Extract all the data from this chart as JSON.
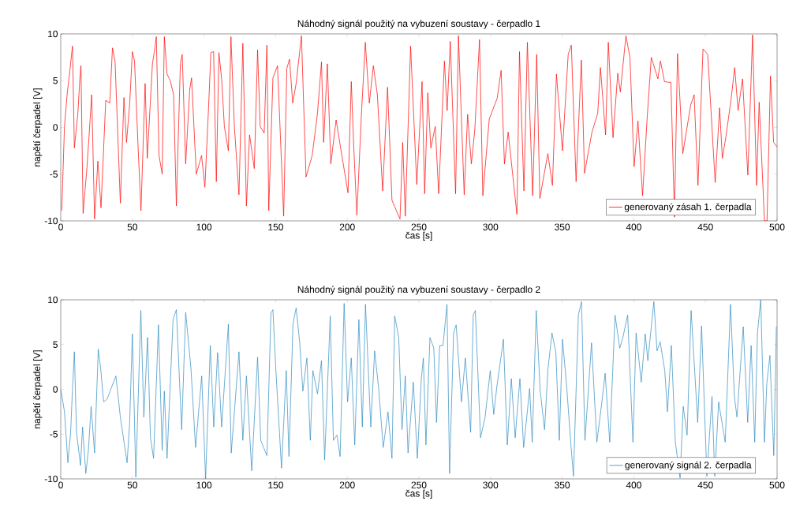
{
  "chart_data": [
    {
      "type": "line",
      "title": "Náhodný signál použitý na vybuzení soustavy - čerpadlo 1",
      "xlabel": "čas [s]",
      "ylabel": "napětí čerpadel [V]",
      "xlim": [
        0,
        500
      ],
      "ylim": [
        -10,
        10
      ],
      "xticks": [
        0,
        50,
        100,
        150,
        200,
        250,
        300,
        350,
        400,
        450,
        500
      ],
      "yticks": [
        -10,
        -5,
        0,
        5,
        10
      ],
      "legend": "bottom right",
      "line_style": "solid",
      "x": [
        0.7,
        2.6,
        4.5,
        6.3,
        8.2,
        9.5,
        11.9,
        13.4,
        14.1,
        15.6,
        18.4,
        21.6,
        23.6,
        25.9,
        28.1,
        31.4,
        34.2,
        36.1,
        37.9,
        41.6,
        44.1,
        45.9,
        48.1,
        50.0,
        51.5,
        54.1,
        56.0,
        58.9,
        60.4,
        64.0,
        65.2,
        66.7,
        68.6,
        70.8,
        72.3,
        74.2,
        76.4,
        78.8,
        80.7,
        83.5,
        84.8,
        87.2,
        90.0,
        91.3,
        94.6,
        98.3,
        100.6,
        103.0,
        104.8,
        106.7,
        108.6,
        110.4,
        112.3,
        114.2,
        117.0,
        118.8,
        121.2,
        124.4,
        127.1,
        129.6,
        131.8,
        135.1,
        137.4,
        139.2,
        142.0,
        143.9,
        145.2,
        148.1,
        151.3,
        155.6,
        157.8,
        159.7,
        161.9,
        164.3,
        168.0,
        171.2,
        175.5,
        179.2,
        182.0,
        183.5,
        186.1,
        188.5,
        192.2,
        195.9,
        200.5,
        202.8,
        204.3,
        206.7,
        209.8,
        212.6,
        215.4,
        218.2,
        221.0,
        224.7,
        228.1,
        231.2,
        236.8,
        238.7,
        240.5,
        244.2,
        248.5,
        252.2,
        254.0,
        256.2,
        258.3,
        261.4,
        263.8,
        267.8,
        269.7,
        271.9,
        275.6,
        277.6,
        281.6,
        284.0,
        286.6,
        289.0,
        292.3,
        294.6,
        299.1,
        304.6,
        307.4,
        309.7,
        312.3,
        318.4,
        320.2,
        323.3,
        325.7,
        329.4,
        332.2,
        334.4,
        340.0,
        343.2,
        346.0,
        350.2,
        354.2,
        356.4,
        359.7,
        363.4,
        365.6,
        370.8,
        374.8,
        376.7,
        380.3,
        382.2,
        385.5,
        388.8,
        390.6,
        394.5,
        397.3,
        400.2,
        402.9,
        406.1,
        409.4,
        412.2,
        416.8,
        418.6,
        421.4,
        425.9,
        428.4,
        430.5,
        434.2,
        435.7,
        439.7,
        442.1,
        444.8,
        448.3,
        451.6,
        456.8,
        459.9,
        461.8,
        464.2,
        467.8,
        470.4,
        472.8,
        475.9,
        479.6,
        482.9,
        485.7,
        487.5,
        491.2,
        493.0,
        495.4,
        497.6,
        500
      ],
      "series": [
        {
          "name": "generovaný zásah 1. čerpadla",
          "color": "#ff0000",
          "values": [
            -8.9,
            0.1,
            3.6,
            6.0,
            8.7,
            -2.2,
            1.4,
            5.4,
            6.6,
            -9.2,
            -4.1,
            3.5,
            -9.8,
            -3.6,
            -8.6,
            2.9,
            2.6,
            8.5,
            7.1,
            -8.1,
            3.2,
            -1.6,
            2.5,
            8.1,
            7.1,
            -2.5,
            -8.9,
            4.7,
            -3.3,
            6.8,
            8.0,
            9.7,
            -3.0,
            -5.0,
            9.7,
            5.7,
            5.0,
            3.5,
            -8.4,
            6.8,
            7.8,
            -3.9,
            4.0,
            5.3,
            -5.0,
            -3.0,
            -6.4,
            1.5,
            8.0,
            8.1,
            -5.8,
            8.0,
            5.2,
            0.1,
            -2.5,
            9.7,
            0.1,
            -7.2,
            9.0,
            -8.4,
            -0.8,
            -4.4,
            8.3,
            0.1,
            -0.6,
            8.8,
            -8.9,
            5.3,
            6.6,
            -9.5,
            6.3,
            7.3,
            2.6,
            4.7,
            9.8,
            -5.3,
            -3.0,
            1.5,
            7.0,
            -1.6,
            6.8,
            -3.9,
            0.8,
            -2.7,
            -7.0,
            4.9,
            -1.3,
            -9.4,
            1.2,
            9.1,
            2.6,
            6.6,
            3.5,
            -6.8,
            4.3,
            -7.8,
            -9.8,
            -1.6,
            -9.5,
            8.7,
            -6.1,
            4.9,
            -7.1,
            3.7,
            -2.2,
            0.1,
            -7.1,
            7.1,
            1.8,
            9.2,
            -7.1,
            9.8,
            -7.2,
            1.4,
            -3.9,
            -0.3,
            9.4,
            -7.3,
            0.9,
            3.1,
            6.1,
            -3.9,
            -0.5,
            -9.3,
            8.1,
            -6.8,
            9.1,
            -7.3,
            7.8,
            -7.6,
            -2.8,
            -6.2,
            5.7,
            -2.5,
            7.8,
            8.8,
            -5.8,
            7.2,
            -4.9,
            -0.5,
            1.5,
            6.4,
            -0.8,
            9.1,
            -1.1,
            5.8,
            3.8,
            9.8,
            7.5,
            -4.2,
            0.7,
            -7.3,
            1.2,
            7.5,
            5.2,
            7.1,
            4.9,
            4.8,
            -9.6,
            7.9,
            -2.8,
            null,
            2.4,
            3.5,
            -6.2,
            8.4,
            7.8,
            -5.9,
            2.1,
            -3.3,
            -1.1,
            2.9,
            6.4,
            1.8,
            5.2,
            -5.1,
            9.9,
            -6.2,
            2.7,
            -10,
            -10,
            5.5,
            -1.6,
            -2.1
          ]
        }
      ]
    },
    {
      "type": "line",
      "title": "Náhodný signál použitý na vybuzení soustavy - čerpadlo 2",
      "xlabel": "čas [s]",
      "ylabel": "napětí čerpadel [V]",
      "xlim": [
        0,
        500
      ],
      "ylim": [
        -10,
        10
      ],
      "xticks": [
        0,
        50,
        100,
        150,
        200,
        250,
        300,
        350,
        400,
        450,
        500
      ],
      "yticks": [
        -10,
        -5,
        0,
        5,
        10
      ],
      "legend": "bottom right",
      "line_style": "solid",
      "x": [
        0.2,
        2.6,
        5.0,
        6.9,
        8.2,
        9.5,
        11.0,
        13.8,
        15.2,
        17.5,
        19.3,
        21.2,
        23.6,
        26.2,
        28.0,
        29.9,
        32.3,
        38.5,
        41.6,
        46.3,
        48.1,
        50.0,
        52.4,
        55.9,
        58.0,
        60.6,
        62.6,
        64.8,
        68.2,
        70.8,
        72.3,
        74.2,
        78.4,
        80.7,
        84.4,
        87.2,
        90.9,
        94.1,
        98.4,
        101.1,
        104.4,
        106.8,
        109.5,
        112.3,
        117.0,
        119.0,
        124.4,
        127.1,
        129.6,
        133.3,
        137.4,
        139.6,
        143.9,
        146.7,
        148.1,
        150.0,
        154.1,
        157.4,
        159.3,
        162.1,
        164.3,
        166.8,
        169.0,
        171.8,
        174.2,
        176.0,
        179.2,
        182.0,
        184.2,
        188.1,
        190.3,
        192.8,
        195.0,
        197.8,
        200.2,
        202.8,
        205.2,
        208.1,
        210.5,
        212.7,
        216.4,
        219.1,
        221.9,
        225.1,
        228.4,
        231.2,
        233.1,
        235.9,
        238.2,
        240.5,
        242.4,
        246.1,
        248.9,
        251.7,
        253.1,
        254.9,
        257.7,
        260.4,
        262.3,
        264.5,
        266.8,
        269.6,
        271.4,
        274.2,
        276.0,
        279.7,
        282.4,
        286.1,
        287.9,
        289.4,
        293.0,
        296.2,
        299.8,
        302.2,
        304.4,
        309.0,
        311.7,
        314.5,
        317.2,
        320.5,
        323.1,
        327.3,
        329.1,
        331.9,
        334.6,
        337.7,
        340.1,
        342.9,
        345.6,
        348.0,
        350.2,
        353.0,
        356.1,
        357.9,
        361.3,
        363.5,
        365.9,
        370.5,
        374.2,
        377.5,
        380.0,
        383.2,
        386.9,
        390.2,
        392.4,
        395.7,
        399.4,
        401.6,
        405.2,
        408.0,
        409.8,
        414.0,
        416.2,
        418.4,
        421.6,
        423.5,
        426.2,
        429.0,
        432.3,
        434.5,
        437.2,
        440.0,
        442.7,
        444.6,
        447.3,
        451.0,
        454.6,
        456.5,
        459.2,
        463.8,
        467.5,
        470.2,
        472.0,
        476.4,
        479.5,
        481.9,
        484.4,
        486.3,
        488.6,
        491.2,
        492.8,
        495.0,
        497.7,
        499.5
      ],
      "series": [
        {
          "name": "generovaný signál 2. čerpadla",
          "color": "#2e8bc0",
          "values": [
            -0.1,
            -2.5,
            -8.2,
            -4.8,
            0.1,
            4.2,
            -4.8,
            -8.5,
            -4.2,
            -9.4,
            -6.8,
            -1.9,
            -7.1,
            4.5,
            2.1,
            -1.4,
            -1.1,
            1.5,
            -3.1,
            -8.2,
            -3.7,
            6.2,
            -9.8,
            8.8,
            -3.1,
            5.8,
            -5.4,
            -7.7,
            7.2,
            -6.8,
            -0.2,
            -7.7,
            7.8,
            8.9,
            -4.5,
            8.6,
            2.3,
            -6.5,
            1.5,
            -10,
            4.9,
            -4.2,
            4.1,
            -4.2,
            7.3,
            -7.1,
            4.2,
            -5.7,
            1.5,
            -9.1,
            3.6,
            -5.7,
            -7.4,
            8.5,
            8.9,
            2.6,
            -8.8,
            2.1,
            -7.5,
            7.3,
            9.1,
            5.2,
            -0.2,
            3.5,
            -5.7,
            2.1,
            -0.5,
            3.2,
            -7.9,
            8.2,
            -5.7,
            -5.1,
            -7.5,
            9.6,
            -1.4,
            3.5,
            -6.2,
            7.8,
            -4.2,
            9.5,
            -4.2,
            4.3,
            0.1,
            -6.5,
            -2.5,
            -7.7,
            8.2,
            5.8,
            -4.5,
            1.5,
            -7.1,
            0.8,
            -7.7,
            1.2,
            3.5,
            -6.2,
            5.8,
            4.6,
            -3.7,
            4.9,
            4.9,
            9.5,
            -9.4,
            6.3,
            7.2,
            -1.4,
            3.5,
            -4.8,
            8.3,
            8.8,
            -5.4,
            -3.1,
            2.1,
            -2.8,
            0.3,
            5.6,
            -6.2,
            1.2,
            -5.4,
            1.2,
            -6.5,
            0.1,
            -5.9,
            8.8,
            -0.1,
            -4.5,
            2.3,
            6.3,
            4.1,
            -5.7,
            5.6,
            0.6,
            -6.2,
            -9.7,
            8.3,
            9.8,
            -5.7,
            5.2,
            -5.9,
            -1.7,
            1.8,
            -5.9,
            8.3,
            4.6,
            5.8,
            8.3,
            -5.9,
            6.3,
            0.8,
            6.2,
            3.2,
            9.8,
            4.3,
            5.3,
            2.1,
            -2.5,
            4.9,
            -5.9,
            -9.9,
            -1.9,
            -5.1,
            8.8,
            1.5,
            -3.7,
            7.1,
            -9.7,
            -0.8,
            -9.7,
            -1.4,
            -5.9,
            9.5,
            -0.8,
            -3.1,
            7.0,
            -3.7,
            4.9,
            -5.9,
            6.3,
            10,
            -5.9,
            0.6,
            3.8,
            -7.4,
            7.0
          ]
        }
      ]
    }
  ]
}
